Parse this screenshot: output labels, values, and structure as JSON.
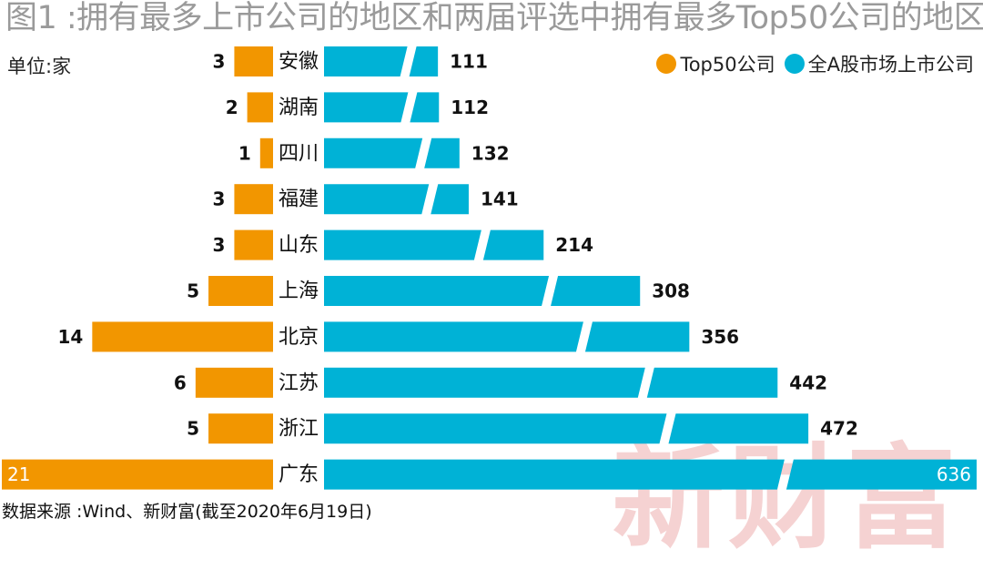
{
  "title": "图1 :拥有最多上市公司的地区和两届评选中拥有最多Top50公司的地区",
  "unit_label": "单位:家",
  "legend": [
    {
      "label": "Top50公司",
      "color": "#f29600"
    },
    {
      "label": "全A股市场上市公司",
      "color": "#00b2d6"
    }
  ],
  "watermark": "新财富",
  "source": "数据来源 :Wind、新财富(截至2020年6月19日)",
  "chart_data": {
    "type": "bar",
    "orientation": "horizontal",
    "categories": [
      "安徽",
      "湖南",
      "四川",
      "福建",
      "山东",
      "上海",
      "北京",
      "江苏",
      "浙江",
      "广东"
    ],
    "series": [
      {
        "name": "Top50公司",
        "color": "#f29600",
        "values": [
          3,
          2,
          1,
          3,
          3,
          5,
          14,
          6,
          5,
          21
        ]
      },
      {
        "name": "全A股市场上市公司",
        "color": "#00b2d6",
        "values": [
          111,
          112,
          132,
          141,
          214,
          308,
          356,
          442,
          472,
          636
        ]
      }
    ],
    "axis_break": true,
    "legend_position": "top-right",
    "grid": false
  }
}
